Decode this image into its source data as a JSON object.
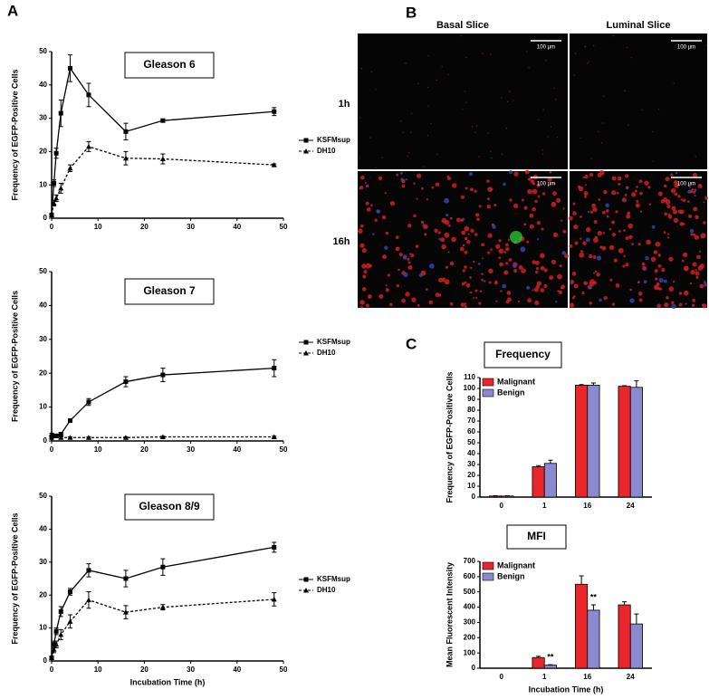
{
  "panels": {
    "labels": [
      "A",
      "B",
      "C"
    ]
  },
  "micrograph": {
    "columns": [
      "Basal Slice",
      "Luminal Slice"
    ],
    "rows": [
      "1h",
      "16h"
    ],
    "scale_bar": "100 µm"
  },
  "chart_data": [
    {
      "type": "line",
      "title": "Gleason 6",
      "y_label": "Frequency of EGFP-Positive Cells",
      "x": [
        0,
        0.5,
        1,
        2,
        4,
        8,
        16,
        24,
        48
      ],
      "xlim": [
        0,
        50
      ],
      "xticks": [
        0,
        10,
        20,
        30,
        40,
        50
      ],
      "ylim": [
        0,
        50
      ],
      "yticks": [
        0,
        10,
        20,
        30,
        40,
        50
      ],
      "series": [
        {
          "name": "KSFMsup",
          "color": "#000000",
          "marker": "square",
          "dashed": false,
          "values": [
            1,
            10.5,
            19.5,
            31.5,
            45,
            37,
            26,
            29.3,
            32
          ],
          "errors": [
            0.5,
            1,
            1.5,
            4,
            4,
            3.5,
            2.5,
            0.3,
            1.2
          ]
        },
        {
          "name": "DH10",
          "color": "#000000",
          "marker": "triangle",
          "dashed": true,
          "values": [
            1,
            4.5,
            6,
            9,
            15,
            21.5,
            18,
            17.8,
            16
          ],
          "errors": [
            0.3,
            0.8,
            1,
            1.5,
            1,
            1.5,
            2,
            1.5,
            0.3
          ]
        }
      ]
    },
    {
      "type": "line",
      "title": "Gleason 7",
      "y_label": "Frequency of EGFP-Positive Cells",
      "x": [
        0,
        0.5,
        1,
        2,
        4,
        8,
        16,
        24,
        48
      ],
      "xlim": [
        0,
        50
      ],
      "xticks": [
        0,
        10,
        20,
        30,
        40,
        50
      ],
      "ylim": [
        0,
        50
      ],
      "yticks": [
        0,
        10,
        20,
        30,
        40,
        50
      ],
      "series": [
        {
          "name": "KSFMsup",
          "color": "#000000",
          "marker": "square",
          "dashed": false,
          "values": [
            1,
            1.5,
            1.5,
            2,
            6,
            11.5,
            17.5,
            19.5,
            21.5
          ],
          "errors": [
            0.5,
            0.5,
            0.5,
            0.5,
            0.5,
            1,
            1.5,
            2,
            2.5
          ]
        },
        {
          "name": "DH10",
          "color": "#000000",
          "marker": "triangle",
          "dashed": true,
          "values": [
            2,
            1.5,
            1.5,
            1,
            1,
            1,
            1,
            1.2,
            1.2
          ],
          "errors": [
            0.3,
            0.3,
            0.3,
            0.2,
            0.2,
            0.2,
            0.2,
            0.2,
            0.2
          ]
        }
      ]
    },
    {
      "type": "line",
      "title": "Gleason 8/9",
      "y_label": "Frequency of EGFP-Positive Cells",
      "x_label": "Incubation Time (h)",
      "x": [
        0,
        0.5,
        1,
        2,
        4,
        8,
        16,
        24,
        48
      ],
      "xlim": [
        0,
        50
      ],
      "xticks": [
        0,
        10,
        20,
        30,
        40,
        50
      ],
      "ylim": [
        0,
        50
      ],
      "yticks": [
        0,
        10,
        20,
        30,
        40,
        50
      ],
      "series": [
        {
          "name": "KSFMsup",
          "color": "#000000",
          "marker": "square",
          "dashed": false,
          "values": [
            1,
            5,
            9,
            15,
            21,
            27.5,
            25,
            28.5,
            34.5
          ],
          "errors": [
            0.5,
            1,
            1,
            1.5,
            1,
            2,
            2.5,
            2.5,
            1.5
          ]
        },
        {
          "name": "DH10",
          "color": "#000000",
          "marker": "triangle",
          "dashed": true,
          "values": [
            1,
            3.5,
            5,
            8,
            12,
            18.5,
            14.8,
            16.3,
            18.7
          ],
          "errors": [
            0.5,
            1,
            1,
            1.5,
            2,
            2.5,
            2,
            0.8,
            2
          ]
        }
      ]
    },
    {
      "type": "bar",
      "title": "Frequency",
      "y_label": "Frequency of EGFP-Positive Cells",
      "categories": [
        "0",
        "1",
        "16",
        "24"
      ],
      "ylim": [
        0,
        110
      ],
      "yticks": [
        0,
        10,
        20,
        30,
        40,
        50,
        60,
        70,
        80,
        90,
        100,
        110
      ],
      "series": [
        {
          "name": "Malignant",
          "color": "#e8262b",
          "values": [
            1,
            28,
            103,
            102
          ],
          "errors": [
            0.2,
            1,
            0.5,
            0.5
          ]
        },
        {
          "name": "Benign",
          "color": "#8a8ad0",
          "values": [
            1,
            31,
            103,
            101
          ],
          "errors": [
            0.2,
            3,
            2,
            6
          ]
        }
      ]
    },
    {
      "type": "bar",
      "title": "MFI",
      "y_label": "Mean Fluorescent Intensity",
      "x_label": "Incubation Time (h)",
      "categories": [
        "0",
        "1",
        "16",
        "24"
      ],
      "ylim": [
        0,
        700
      ],
      "yticks": [
        0,
        100,
        200,
        300,
        400,
        500,
        600,
        700
      ],
      "series": [
        {
          "name": "Malignant",
          "color": "#e8262b",
          "values": [
            0,
            70,
            550,
            415
          ],
          "errors": [
            0,
            8,
            55,
            20
          ]
        },
        {
          "name": "Benign",
          "color": "#8a8ad0",
          "values": [
            0,
            20,
            380,
            290
          ],
          "errors": [
            0,
            3,
            35,
            65
          ]
        }
      ],
      "annotations": [
        {
          "text": "**",
          "category": "1"
        },
        {
          "text": "**",
          "category": "16"
        }
      ]
    }
  ]
}
